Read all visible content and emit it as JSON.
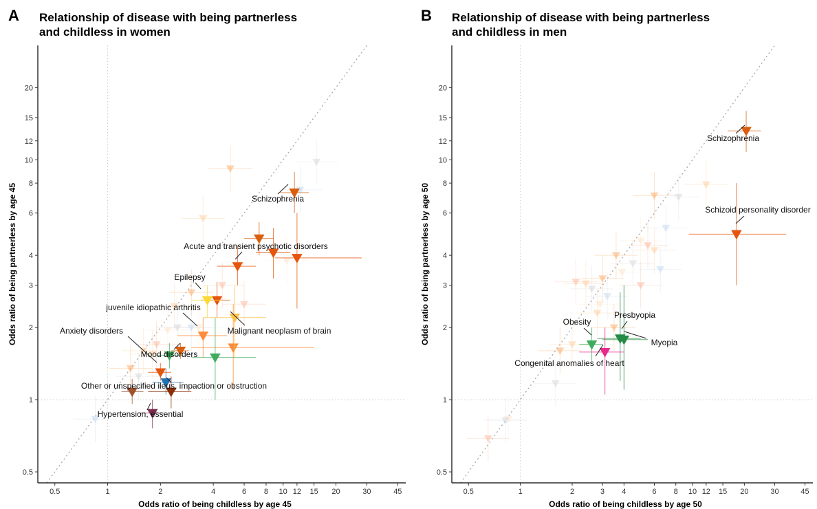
{
  "chart_data": [
    {
      "type": "scatter",
      "panel": "A",
      "title_line1": "Relationship of disease with being partnerless",
      "title_line2": "and childless in women",
      "xlabel": "Odds ratio of being childless by age 45",
      "ylabel": "Odds ratio of being partnerless by age 45",
      "x_scale": "log",
      "y_scale": "log",
      "xlim": [
        0.4,
        50
      ],
      "ylim": [
        0.45,
        30
      ],
      "x_ticks": [
        0.5,
        1,
        2,
        4,
        6,
        8,
        10,
        12,
        15,
        20,
        30,
        45
      ],
      "x_tick_labels": [
        "0.5",
        "1",
        "2",
        "4",
        "6",
        "8",
        "10",
        "12",
        "15",
        "20",
        "30",
        "45"
      ],
      "y_ticks": [
        0.5,
        1,
        2,
        3,
        4,
        6,
        8,
        10,
        12,
        15,
        20
      ],
      "y_tick_labels": [
        "0.5",
        "1",
        "2",
        "3",
        "4",
        "6",
        "8",
        "10",
        "12",
        "15",
        "20"
      ],
      "reference_lines": {
        "x": 1,
        "y": 1,
        "diagonal": true
      },
      "highlighted": [
        {
          "name": "Schizophrenia",
          "x": 11.6,
          "y": 7.3,
          "xerr": [
            9.6,
            14.0
          ],
          "yerr": [
            6.0,
            8.9
          ],
          "color": "#d95f0e"
        },
        {
          "name": "Acute and transient psychotic disorders",
          "x": 5.5,
          "y": 3.6,
          "xerr": [
            4.2,
            7.0
          ],
          "yerr": [
            3.0,
            4.4
          ],
          "color": "#e6550d"
        },
        {
          "name": "Epilepsy",
          "x": 3.7,
          "y": 2.6,
          "xerr": [
            3.0,
            4.5
          ],
          "yerr": [
            2.2,
            3.0
          ],
          "color": "#fdd835"
        },
        {
          "name": "juvenile idiopathic arthritis",
          "x": 3.5,
          "y": 1.85,
          "xerr": [
            2.5,
            4.8
          ],
          "yerr": [
            1.5,
            2.2
          ],
          "color": "#fd8d3c"
        },
        {
          "name": "Malignant neoplasm of brain",
          "x": 5.3,
          "y": 2.2,
          "xerr": [
            3.5,
            8.0
          ],
          "yerr": [
            1.5,
            3.0
          ],
          "color": "#fec44f"
        },
        {
          "name": "Anxiety disorders",
          "x": 2.0,
          "y": 1.3,
          "xerr": [
            1.7,
            2.3
          ],
          "yerr": [
            1.2,
            1.42
          ],
          "color": "#e6550d"
        },
        {
          "name": "Mood disorders",
          "x": 2.6,
          "y": 1.6,
          "xerr": [
            2.3,
            2.9
          ],
          "yerr": [
            1.48,
            1.72
          ],
          "color": "#d95f0e"
        },
        {
          "name": "Other or unspecified ileus, impaction or obstruction",
          "x": 2.3,
          "y": 1.08,
          "xerr": [
            1.7,
            3.0
          ],
          "yerr": [
            0.92,
            1.25
          ],
          "color": "#8c2d04"
        },
        {
          "name": "Hypertension, essential",
          "x": 1.8,
          "y": 0.88,
          "xerr": [
            1.5,
            2.1
          ],
          "yerr": [
            0.76,
            1.0
          ],
          "color": "#7b2d50"
        }
      ],
      "other_highlighted": [
        {
          "x": 7.3,
          "y": 4.7,
          "xerr": [
            6.0,
            8.8
          ],
          "yerr": [
            4.0,
            5.5
          ],
          "color": "#d95f0e"
        },
        {
          "x": 8.8,
          "y": 4.1,
          "xerr": [
            7.0,
            11.0
          ],
          "yerr": [
            3.2,
            5.2
          ],
          "color": "#e6550d"
        },
        {
          "x": 12.0,
          "y": 3.9,
          "xerr": [
            9.0,
            28.0
          ],
          "yerr": [
            2.4,
            6.0
          ],
          "color": "#e6550d"
        },
        {
          "x": 4.2,
          "y": 2.6,
          "xerr": [
            3.4,
            5.0
          ],
          "yerr": [
            2.2,
            3.1
          ],
          "color": "#e6550d"
        },
        {
          "x": 5.2,
          "y": 1.65,
          "xerr": [
            3.0,
            15.0
          ],
          "yerr": [
            1.1,
            2.5
          ],
          "color": "#fd8d3c"
        },
        {
          "x": 4.1,
          "y": 1.5,
          "xerr": [
            3.0,
            7.0
          ],
          "yerr": [
            1.0,
            2.2
          ],
          "color": "#41ab5d"
        },
        {
          "x": 2.25,
          "y": 1.53,
          "xerr": [
            1.9,
            2.7
          ],
          "yerr": [
            1.35,
            1.72
          ],
          "color": "#41ab5d"
        },
        {
          "x": 2.15,
          "y": 1.18,
          "xerr": [
            1.8,
            2.7
          ],
          "yerr": [
            1.05,
            1.35
          ],
          "color": "#2171b5"
        },
        {
          "x": 1.38,
          "y": 1.08,
          "xerr": [
            1.2,
            1.6
          ],
          "yerr": [
            0.96,
            1.22
          ],
          "color": "#a0522d"
        }
      ],
      "background": [
        {
          "x": 3.5,
          "y": 5.7
        },
        {
          "x": 5.0,
          "y": 9.2
        },
        {
          "x": 15.5,
          "y": 9.8
        },
        {
          "x": 12.5,
          "y": 7.5
        },
        {
          "x": 10.5,
          "y": 3.8
        },
        {
          "x": 6.0,
          "y": 2.5
        },
        {
          "x": 2.4,
          "y": 2.45
        },
        {
          "x": 3.0,
          "y": 2.8
        },
        {
          "x": 2.5,
          "y": 2.0
        },
        {
          "x": 3.0,
          "y": 2.0
        },
        {
          "x": 2.2,
          "y": 1.95
        },
        {
          "x": 1.9,
          "y": 1.7
        },
        {
          "x": 1.8,
          "y": 1.55
        },
        {
          "x": 1.35,
          "y": 1.35
        },
        {
          "x": 1.5,
          "y": 1.25
        },
        {
          "x": 0.85,
          "y": 0.83
        },
        {
          "x": 3.3,
          "y": 2.0
        },
        {
          "x": 4.5,
          "y": 3.0
        },
        {
          "x": 1.6,
          "y": 1.6
        }
      ]
    },
    {
      "type": "scatter",
      "panel": "B",
      "title_line1": "Relationship of disease with being partnerless",
      "title_line2": "and childless in men",
      "xlabel": "Odds ratio of being childless by age 50",
      "ylabel": "Odds ratio of being partnerless by age 50",
      "x_scale": "log",
      "y_scale": "log",
      "xlim": [
        0.4,
        50
      ],
      "ylim": [
        0.45,
        30
      ],
      "x_ticks": [
        0.5,
        1,
        2,
        3,
        4,
        6,
        8,
        10,
        12,
        15,
        20,
        30,
        45
      ],
      "x_tick_labels": [
        "0.5",
        "1",
        "2",
        "3",
        "4",
        "6",
        "8",
        "10",
        "12",
        "15",
        "20",
        "30",
        "45"
      ],
      "y_ticks": [
        0.5,
        1,
        2,
        3,
        4,
        6,
        8,
        10,
        12,
        15,
        20
      ],
      "y_tick_labels": [
        "0.5",
        "1",
        "2",
        "3",
        "4",
        "6",
        "8",
        "10",
        "12",
        "15",
        "20"
      ],
      "reference_lines": {
        "x": 1,
        "y": 1,
        "diagonal": true
      },
      "highlighted": [
        {
          "name": "Schizophrenia",
          "x": 20.5,
          "y": 13.2,
          "xerr": [
            16.0,
            25.0
          ],
          "yerr": [
            10.8,
            16.0
          ],
          "color": "#d95f0e"
        },
        {
          "name": "Schizoid personality disorder",
          "x": 18.0,
          "y": 4.9,
          "xerr": [
            9.5,
            35.0
          ],
          "yerr": [
            3.0,
            8.0
          ],
          "color": "#e6550d"
        },
        {
          "name": "Obesity",
          "x": 2.6,
          "y": 1.7,
          "xerr": [
            2.2,
            3.0
          ],
          "yerr": [
            1.45,
            2.0
          ],
          "color": "#41ab5d"
        },
        {
          "name": "Presbyopia",
          "x": 3.8,
          "y": 1.8,
          "xerr": [
            2.8,
            5.0
          ],
          "yerr": [
            1.2,
            2.8
          ],
          "color": "#238b45"
        },
        {
          "name": "Myopia",
          "x": 4.0,
          "y": 1.78,
          "xerr": [
            3.0,
            5.5
          ],
          "yerr": [
            1.1,
            3.0
          ],
          "color": "#238b45"
        },
        {
          "name": "Congenital anomalies of heart",
          "x": 3.1,
          "y": 1.58,
          "xerr": [
            2.2,
            4.0
          ],
          "yerr": [
            1.05,
            2.0
          ],
          "color": "#e7298a"
        }
      ],
      "other_highlighted": [],
      "background": [
        {
          "x": 12.0,
          "y": 7.9
        },
        {
          "x": 6.0,
          "y": 7.1
        },
        {
          "x": 8.3,
          "y": 7.0
        },
        {
          "x": 7.0,
          "y": 5.2
        },
        {
          "x": 5.0,
          "y": 4.6
        },
        {
          "x": 5.5,
          "y": 4.4
        },
        {
          "x": 6.0,
          "y": 4.2
        },
        {
          "x": 3.6,
          "y": 4.0
        },
        {
          "x": 4.5,
          "y": 3.7
        },
        {
          "x": 6.5,
          "y": 3.5
        },
        {
          "x": 3.9,
          "y": 3.4
        },
        {
          "x": 2.1,
          "y": 3.1
        },
        {
          "x": 2.4,
          "y": 3.05
        },
        {
          "x": 3.0,
          "y": 3.2
        },
        {
          "x": 2.6,
          "y": 2.9
        },
        {
          "x": 3.2,
          "y": 2.7
        },
        {
          "x": 2.9,
          "y": 2.5
        },
        {
          "x": 5.0,
          "y": 3.0
        },
        {
          "x": 2.0,
          "y": 1.7
        },
        {
          "x": 1.7,
          "y": 1.6
        },
        {
          "x": 1.6,
          "y": 1.17
        },
        {
          "x": 0.82,
          "y": 0.82
        },
        {
          "x": 0.85,
          "y": 0.83
        },
        {
          "x": 0.65,
          "y": 0.69
        },
        {
          "x": 2.8,
          "y": 2.3
        },
        {
          "x": 3.5,
          "y": 2.0
        }
      ]
    }
  ]
}
